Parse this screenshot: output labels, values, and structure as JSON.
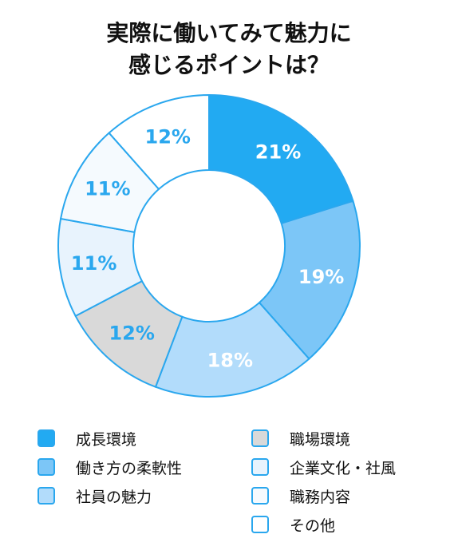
{
  "title": [
    "実際に働いてみて魅力に",
    "感じるポイントは？"
  ],
  "colors": {
    "stroke": "#2aa7ee",
    "label_dark": "#ffffff",
    "label_light": "#2aa7ee"
  },
  "chart_data": {
    "type": "pie",
    "donut": true,
    "categories": [
      "成長環境",
      "働き方の柔軟性",
      "社員の魅力",
      "職場環境",
      "企業文化・社風",
      "職務内容",
      "その他"
    ],
    "values": [
      21,
      19,
      18,
      12,
      11,
      11,
      12
    ],
    "labels": [
      "21%",
      "19%",
      "18%",
      "12%",
      "11%",
      "11%",
      "12%"
    ],
    "slice_colors": [
      "#22aaf2",
      "#7cc6f7",
      "#b2dcfb",
      "#d9d9d9",
      "#e8f3fd",
      "#f5fafe",
      "#ffffff"
    ],
    "label_colors": [
      "#ffffff",
      "#ffffff",
      "#ffffff",
      "#2aa7ee",
      "#2aa7ee",
      "#2aa7ee",
      "#2aa7ee"
    ],
    "legend": {
      "left": [
        "成長環境",
        "働き方の柔軟性",
        "社員の魅力"
      ],
      "right": [
        "職場環境",
        "企業文化・社風",
        "職務内容",
        "その他"
      ]
    }
  }
}
